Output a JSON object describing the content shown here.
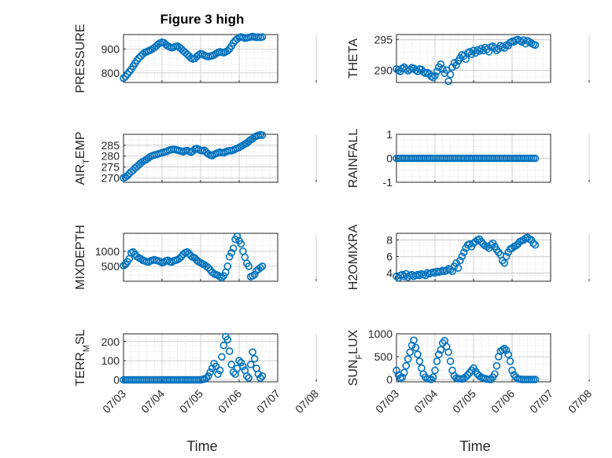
{
  "figure": {
    "title": "Figure 3 high",
    "marker_color": "#0072BD",
    "axis_color": "#262626",
    "grid_color": "#cfcfcf"
  },
  "chart_data": [
    {
      "type": "scatter",
      "ylabel": "PRESSURE",
      "title": "Figure 3 high",
      "xlim": [
        0,
        4
      ],
      "ylim": [
        760,
        960
      ],
      "yticks": [
        800,
        900
      ],
      "x": [
        0.0,
        0.05,
        0.1,
        0.15,
        0.2,
        0.25,
        0.3,
        0.35,
        0.4,
        0.45,
        0.5,
        0.55,
        0.6,
        0.65,
        0.7,
        0.75,
        0.8,
        0.85,
        0.9,
        0.95,
        1.0,
        1.05,
        1.1,
        1.15,
        1.2,
        1.25,
        1.3,
        1.35,
        1.4,
        1.45,
        1.5,
        1.55,
        1.6,
        1.65,
        1.7,
        1.75,
        1.8,
        1.85,
        1.9,
        1.95,
        2.0,
        2.05,
        2.1,
        2.15,
        2.2,
        2.25,
        2.3,
        2.35,
        2.4,
        2.45,
        2.5,
        2.55,
        2.6,
        2.65,
        2.7,
        2.75,
        2.8,
        2.85,
        2.9,
        2.95,
        3.0,
        3.05,
        3.1,
        3.15,
        3.2,
        3.25,
        3.3,
        3.35,
        3.4,
        3.45,
        3.5,
        3.55,
        3.6
      ],
      "y": [
        778,
        785,
        795,
        805,
        815,
        828,
        840,
        852,
        862,
        870,
        878,
        885,
        888,
        892,
        895,
        900,
        905,
        912,
        920,
        925,
        928,
        926,
        918,
        912,
        908,
        905,
        907,
        910,
        912,
        906,
        900,
        892,
        885,
        878,
        870,
        862,
        858,
        860,
        868,
        875,
        880,
        878,
        873,
        870,
        868,
        870,
        872,
        875,
        880,
        885,
        888,
        886,
        884,
        888,
        892,
        900,
        912,
        925,
        935,
        942,
        948,
        950,
        948,
        945,
        946,
        948,
        950,
        952,
        950,
        948,
        950,
        948,
        950
      ]
    },
    {
      "type": "scatter",
      "ylabel": "THETA",
      "xlim": [
        0,
        4
      ],
      "ylim": [
        288,
        295.8
      ],
      "yticks": [
        290,
        295
      ],
      "x": [
        0.0,
        0.05,
        0.1,
        0.15,
        0.2,
        0.25,
        0.3,
        0.35,
        0.4,
        0.45,
        0.5,
        0.55,
        0.6,
        0.65,
        0.7,
        0.75,
        0.8,
        0.85,
        0.9,
        0.95,
        1.0,
        1.05,
        1.1,
        1.15,
        1.2,
        1.25,
        1.3,
        1.35,
        1.4,
        1.45,
        1.5,
        1.55,
        1.6,
        1.65,
        1.7,
        1.75,
        1.8,
        1.85,
        1.9,
        1.95,
        2.0,
        2.05,
        2.1,
        2.15,
        2.2,
        2.25,
        2.3,
        2.35,
        2.4,
        2.45,
        2.5,
        2.55,
        2.6,
        2.65,
        2.7,
        2.75,
        2.8,
        2.85,
        2.9,
        2.95,
        3.0,
        3.05,
        3.1,
        3.15,
        3.2,
        3.25,
        3.3,
        3.35,
        3.4,
        3.45,
        3.5,
        3.55,
        3.6
      ],
      "y": [
        290.2,
        290.0,
        289.8,
        290.3,
        290.5,
        290.2,
        289.9,
        290.1,
        290.4,
        290.3,
        290.0,
        289.8,
        290.2,
        290.1,
        289.7,
        289.5,
        289.6,
        289.4,
        289.0,
        288.8,
        289.1,
        289.8,
        290.5,
        291.0,
        290.2,
        289.5,
        290.0,
        288.2,
        289.3,
        290.5,
        291.2,
        290.8,
        291.5,
        292.0,
        292.5,
        292.3,
        291.8,
        292.8,
        293.0,
        292.6,
        293.2,
        292.8,
        293.3,
        293.1,
        293.5,
        293.2,
        293.7,
        293.4,
        293.0,
        293.8,
        293.9,
        293.6,
        293.2,
        293.5,
        294.0,
        293.8,
        293.6,
        294.1,
        294.0,
        294.5,
        294.7,
        294.6,
        294.9,
        295.0,
        294.8,
        294.6,
        294.9,
        294.3,
        294.8,
        294.6,
        294.4,
        294.2,
        294.1
      ]
    },
    {
      "type": "scatter",
      "ylabel": "AIR_TEMP",
      "ylabel_parts": [
        "AIR",
        "T",
        "EMP"
      ],
      "xlim": [
        0,
        4
      ],
      "ylim": [
        268,
        290
      ],
      "yticks": [
        270,
        275,
        280,
        285
      ],
      "x": [
        0.0,
        0.05,
        0.1,
        0.15,
        0.2,
        0.25,
        0.3,
        0.35,
        0.4,
        0.45,
        0.5,
        0.55,
        0.6,
        0.65,
        0.7,
        0.75,
        0.8,
        0.85,
        0.9,
        0.95,
        1.0,
        1.05,
        1.1,
        1.15,
        1.2,
        1.25,
        1.3,
        1.35,
        1.4,
        1.45,
        1.5,
        1.55,
        1.6,
        1.65,
        1.7,
        1.75,
        1.8,
        1.85,
        1.9,
        1.95,
        2.0,
        2.05,
        2.1,
        2.15,
        2.2,
        2.25,
        2.3,
        2.35,
        2.4,
        2.45,
        2.5,
        2.55,
        2.6,
        2.65,
        2.7,
        2.75,
        2.8,
        2.85,
        2.9,
        2.95,
        3.0,
        3.05,
        3.1,
        3.15,
        3.2,
        3.25,
        3.3,
        3.35,
        3.4,
        3.45,
        3.5,
        3.55,
        3.6
      ],
      "y": [
        270.0,
        270.3,
        271.0,
        272.0,
        272.8,
        273.5,
        274.5,
        275.2,
        276.0,
        276.8,
        277.5,
        278.0,
        278.5,
        279.2,
        279.8,
        280.2,
        280.5,
        280.7,
        281.0,
        281.3,
        281.5,
        281.8,
        282.0,
        282.4,
        282.8,
        283.0,
        283.1,
        283.0,
        282.8,
        282.5,
        282.3,
        282.0,
        282.4,
        282.6,
        282.2,
        281.8,
        282.3,
        283.2,
        283.5,
        283.0,
        282.6,
        282.5,
        282.7,
        281.8,
        281.0,
        280.5,
        280.2,
        280.8,
        281.2,
        281.5,
        281.8,
        281.6,
        281.5,
        282.0,
        282.3,
        282.5,
        282.5,
        282.8,
        283.2,
        283.6,
        284.0,
        284.5,
        285.0,
        285.6,
        286.0,
        286.8,
        287.5,
        288.0,
        288.8,
        289.2,
        289.5,
        289.8,
        289.6
      ]
    },
    {
      "type": "scatter",
      "ylabel": "RAINFALL",
      "xlim": [
        0,
        4
      ],
      "ylim": [
        -1,
        1
      ],
      "yticks": [
        -1,
        0,
        1
      ],
      "x": [
        0.0,
        0.05,
        0.1,
        0.15,
        0.2,
        0.25,
        0.3,
        0.35,
        0.4,
        0.45,
        0.5,
        0.55,
        0.6,
        0.65,
        0.7,
        0.75,
        0.8,
        0.85,
        0.9,
        0.95,
        1.0,
        1.05,
        1.1,
        1.15,
        1.2,
        1.25,
        1.3,
        1.35,
        1.4,
        1.45,
        1.5,
        1.55,
        1.6,
        1.65,
        1.7,
        1.75,
        1.8,
        1.85,
        1.9,
        1.95,
        2.0,
        2.05,
        2.1,
        2.15,
        2.2,
        2.25,
        2.3,
        2.35,
        2.4,
        2.45,
        2.5,
        2.55,
        2.6,
        2.65,
        2.7,
        2.75,
        2.8,
        2.85,
        2.9,
        2.95,
        3.0,
        3.05,
        3.1,
        3.15,
        3.2,
        3.25,
        3.3,
        3.35,
        3.4,
        3.45,
        3.5,
        3.55,
        3.6
      ],
      "y": [
        0,
        0,
        0,
        0,
        0,
        0,
        0,
        0,
        0,
        0,
        0,
        0,
        0,
        0,
        0,
        0,
        0,
        0,
        0,
        0,
        0,
        0,
        0,
        0,
        0,
        0,
        0,
        0,
        0,
        0,
        0,
        0,
        0,
        0,
        0,
        0,
        0,
        0,
        0,
        0,
        0,
        0,
        0,
        0,
        0,
        0,
        0,
        0,
        0,
        0,
        0,
        0,
        0,
        0,
        0,
        0,
        0,
        0,
        0,
        0,
        0,
        0,
        0,
        0,
        0,
        0,
        0,
        0,
        0,
        0,
        0,
        0,
        0
      ]
    },
    {
      "type": "scatter",
      "ylabel": "MIXDEPTH",
      "xlim": [
        0,
        4
      ],
      "ylim": [
        0,
        1600
      ],
      "yticks": [
        500,
        1000
      ],
      "x": [
        0.0,
        0.05,
        0.1,
        0.15,
        0.2,
        0.25,
        0.3,
        0.35,
        0.4,
        0.45,
        0.5,
        0.55,
        0.6,
        0.65,
        0.7,
        0.75,
        0.8,
        0.85,
        0.9,
        0.95,
        1.0,
        1.05,
        1.1,
        1.15,
        1.2,
        1.25,
        1.3,
        1.35,
        1.4,
        1.45,
        1.5,
        1.55,
        1.6,
        1.65,
        1.7,
        1.75,
        1.8,
        1.85,
        1.9,
        1.95,
        2.0,
        2.05,
        2.1,
        2.15,
        2.2,
        2.25,
        2.3,
        2.35,
        2.4,
        2.45,
        2.5,
        2.55,
        2.6,
        2.65,
        2.7,
        2.75,
        2.8,
        2.85,
        2.9,
        2.95,
        3.0,
        3.05,
        3.1,
        3.15,
        3.2,
        3.25,
        3.3,
        3.35,
        3.4,
        3.45,
        3.5,
        3.55,
        3.6
      ],
      "y": [
        520,
        560,
        650,
        750,
        950,
        980,
        900,
        820,
        780,
        750,
        700,
        680,
        650,
        640,
        680,
        700,
        720,
        700,
        680,
        650,
        620,
        640,
        680,
        700,
        650,
        640,
        680,
        700,
        720,
        760,
        820,
        900,
        950,
        980,
        920,
        850,
        800,
        780,
        700,
        650,
        620,
        580,
        550,
        500,
        450,
        380,
        300,
        250,
        220,
        200,
        150,
        120,
        180,
        300,
        500,
        820,
        950,
        1100,
        1400,
        1500,
        1350,
        1250,
        1000,
        800,
        600,
        500,
        150,
        180,
        220,
        350,
        400,
        450,
        500
      ]
    },
    {
      "type": "scatter",
      "ylabel": "H2OMIXRA",
      "xlim": [
        0,
        4
      ],
      "ylim": [
        3,
        8.8
      ],
      "yticks": [
        4,
        6,
        8
      ],
      "x": [
        0.0,
        0.05,
        0.1,
        0.15,
        0.2,
        0.25,
        0.3,
        0.35,
        0.4,
        0.45,
        0.5,
        0.55,
        0.6,
        0.65,
        0.7,
        0.75,
        0.8,
        0.85,
        0.9,
        0.95,
        1.0,
        1.05,
        1.1,
        1.15,
        1.2,
        1.25,
        1.3,
        1.35,
        1.4,
        1.45,
        1.5,
        1.55,
        1.6,
        1.65,
        1.7,
        1.75,
        1.8,
        1.85,
        1.9,
        1.95,
        2.0,
        2.05,
        2.1,
        2.15,
        2.2,
        2.25,
        2.3,
        2.35,
        2.4,
        2.45,
        2.5,
        2.55,
        2.6,
        2.65,
        2.7,
        2.75,
        2.8,
        2.85,
        2.9,
        2.95,
        3.0,
        3.05,
        3.1,
        3.15,
        3.2,
        3.25,
        3.3,
        3.35,
        3.4,
        3.45,
        3.5,
        3.55,
        3.6
      ],
      "y": [
        3.6,
        3.4,
        3.7,
        3.8,
        3.6,
        3.9,
        3.5,
        3.7,
        3.8,
        3.6,
        3.7,
        3.8,
        3.7,
        3.9,
        3.8,
        3.7,
        4.0,
        3.9,
        4.0,
        4.1,
        4.0,
        4.2,
        4.1,
        4.2,
        4.3,
        4.2,
        4.3,
        4.5,
        4.4,
        4.2,
        4.8,
        5.2,
        4.6,
        5.5,
        6.0,
        6.5,
        7.0,
        7.4,
        7.5,
        7.2,
        7.6,
        7.8,
        8.0,
        8.1,
        7.8,
        7.5,
        7.3,
        7.2,
        7.0,
        7.4,
        7.6,
        7.2,
        6.8,
        6.5,
        6.2,
        5.5,
        5.2,
        6.0,
        6.5,
        6.9,
        7.0,
        7.2,
        7.3,
        7.5,
        7.8,
        7.9,
        8.0,
        8.2,
        8.3,
        8.1,
        8.0,
        7.6,
        7.4
      ]
    },
    {
      "type": "scatter",
      "ylabel": "TERR_MSL",
      "ylabel_parts": [
        "TERR",
        "M",
        "SL"
      ],
      "xlim": [
        0,
        4
      ],
      "ylim": [
        -10,
        240
      ],
      "yticks": [
        0,
        100,
        200
      ],
      "x": [
        0.0,
        0.05,
        0.1,
        0.15,
        0.2,
        0.25,
        0.3,
        0.35,
        0.4,
        0.45,
        0.5,
        0.55,
        0.6,
        0.65,
        0.7,
        0.75,
        0.8,
        0.85,
        0.9,
        0.95,
        1.0,
        1.05,
        1.1,
        1.15,
        1.2,
        1.25,
        1.3,
        1.35,
        1.4,
        1.45,
        1.5,
        1.55,
        1.6,
        1.65,
        1.7,
        1.75,
        1.8,
        1.85,
        1.9,
        1.95,
        2.0,
        2.05,
        2.1,
        2.15,
        2.2,
        2.25,
        2.3,
        2.35,
        2.4,
        2.45,
        2.5,
        2.55,
        2.6,
        2.65,
        2.7,
        2.75,
        2.8,
        2.85,
        2.9,
        2.95,
        3.0,
        3.05,
        3.1,
        3.15,
        3.2,
        3.25,
        3.3,
        3.35,
        3.4,
        3.45,
        3.5,
        3.55,
        3.6
      ],
      "y": [
        0,
        0,
        0,
        0,
        0,
        0,
        0,
        0,
        0,
        0,
        0,
        0,
        0,
        0,
        0,
        0,
        0,
        0,
        0,
        0,
        0,
        0,
        0,
        0,
        0,
        0,
        0,
        0,
        0,
        0,
        0,
        0,
        0,
        0,
        0,
        0,
        0,
        0,
        0,
        0,
        0,
        2,
        5,
        10,
        20,
        40,
        60,
        85,
        70,
        30,
        50,
        120,
        180,
        225,
        210,
        150,
        80,
        40,
        30,
        60,
        100,
        90,
        70,
        50,
        20,
        10,
        80,
        145,
        110,
        60,
        30,
        10,
        20
      ]
    },
    {
      "type": "scatter",
      "ylabel": "SUN_FLUX",
      "ylabel_parts": [
        "SUN",
        "F",
        "LUX"
      ],
      "xlim": [
        0,
        4
      ],
      "ylim": [
        -50,
        1000
      ],
      "yticks": [
        0,
        500,
        1000
      ],
      "x": [
        0.0,
        0.05,
        0.1,
        0.15,
        0.2,
        0.25,
        0.3,
        0.35,
        0.4,
        0.45,
        0.5,
        0.55,
        0.6,
        0.65,
        0.7,
        0.75,
        0.8,
        0.85,
        0.9,
        0.95,
        1.0,
        1.05,
        1.1,
        1.15,
        1.2,
        1.25,
        1.3,
        1.35,
        1.4,
        1.45,
        1.5,
        1.55,
        1.6,
        1.65,
        1.7,
        1.75,
        1.8,
        1.85,
        1.9,
        1.95,
        2.0,
        2.05,
        2.1,
        2.15,
        2.2,
        2.25,
        2.3,
        2.35,
        2.4,
        2.45,
        2.5,
        2.55,
        2.6,
        2.65,
        2.7,
        2.75,
        2.8,
        2.85,
        2.9,
        2.95,
        3.0,
        3.05,
        3.1,
        3.15,
        3.2,
        3.25,
        3.3,
        3.35,
        3.4,
        3.45,
        3.5,
        3.55,
        3.6
      ],
      "y": [
        200,
        100,
        30,
        50,
        150,
        300,
        450,
        600,
        750,
        860,
        700,
        550,
        400,
        250,
        120,
        50,
        20,
        10,
        5,
        50,
        200,
        400,
        550,
        650,
        800,
        850,
        720,
        600,
        400,
        200,
        80,
        30,
        20,
        15,
        10,
        30,
        60,
        100,
        150,
        200,
        250,
        180,
        120,
        80,
        50,
        30,
        20,
        10,
        5,
        0,
        50,
        120,
        300,
        500,
        620,
        650,
        680,
        640,
        550,
        400,
        200,
        100,
        50,
        20,
        10,
        0,
        0,
        0,
        0,
        0,
        0,
        0,
        0
      ]
    }
  ],
  "x_axis": {
    "tick_labels": [
      "07/03",
      "07/04",
      "07/05",
      "07/06",
      "07/07",
      "07/08"
    ],
    "label": "Time"
  }
}
